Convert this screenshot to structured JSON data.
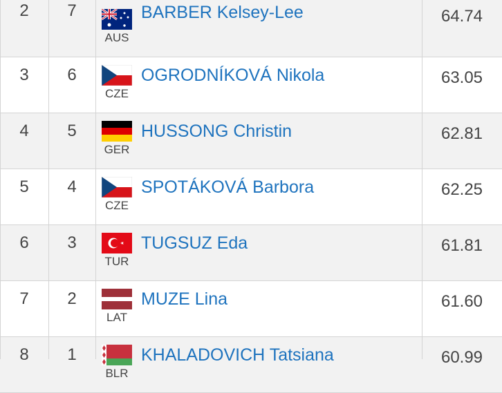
{
  "table": {
    "rows": [
      {
        "rank": 2,
        "bib": 7,
        "country": "AUS",
        "name": "BARBER Kelsey-Lee",
        "mark": "64.74"
      },
      {
        "rank": 3,
        "bib": 6,
        "country": "CZE",
        "name": "OGRODNÍKOVÁ Nikola",
        "mark": "63.05"
      },
      {
        "rank": 4,
        "bib": 5,
        "country": "GER",
        "name": "HUSSONG Christin",
        "mark": "62.81"
      },
      {
        "rank": 5,
        "bib": 4,
        "country": "CZE",
        "name": "SPOTÁKOVÁ Barbora",
        "mark": "62.25"
      },
      {
        "rank": 6,
        "bib": 3,
        "country": "TUR",
        "name": "TUGSUZ Eda",
        "mark": "61.81"
      },
      {
        "rank": 7,
        "bib": 2,
        "country": "LAT",
        "name": "MUZE Lina",
        "mark": "61.60"
      },
      {
        "rank": 8,
        "bib": 1,
        "country": "BLR",
        "name": "KHALADOVICH Tatsiana",
        "mark": "60.99"
      }
    ]
  }
}
